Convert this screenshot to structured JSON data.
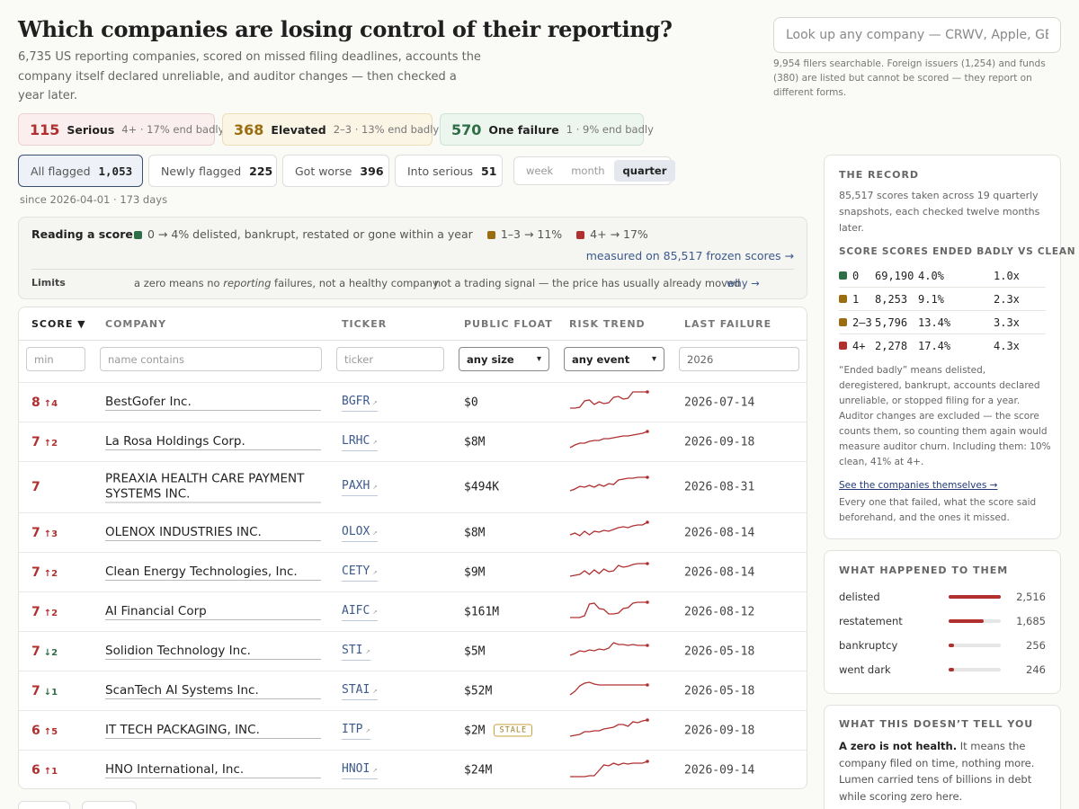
{
  "header": {
    "title": "Which companies are losing control of their reporting?",
    "subtitle": "6,735 US reporting companies, scored on missed filing deadlines, accounts the company itself declared unreliable, and auditor changes — then checked a year later.",
    "search_placeholder": "Look up any company — CRWV, Apple, GE…",
    "search_note": "9,954 filers searchable. Foreign issuers (1,254) and funds (380) are listed but cannot be scored — they report on different forms."
  },
  "summary": [
    {
      "num": "115",
      "label": "Serious",
      "sub": "4+ · 17% end badly",
      "color": "#b03030",
      "bg": "#fbeeee",
      "border": "#efd0d0"
    },
    {
      "num": "368",
      "label": "Elevated",
      "sub": "2–3 · 13% end badly",
      "color": "#9a6d10",
      "bg": "#fbf5e6",
      "border": "#ecdfb8"
    },
    {
      "num": "570",
      "label": "One failure",
      "sub": "1 · 9% end badly",
      "color": "#2e6e46",
      "bg": "#edf5ef",
      "border": "#cfe3d5"
    }
  ],
  "tabs": [
    {
      "label": "All flagged",
      "count": "1,053"
    },
    {
      "label": "Newly flagged",
      "count": "225"
    },
    {
      "label": "Got worse",
      "count": "396"
    },
    {
      "label": "Into serious",
      "count": "51"
    }
  ],
  "period": {
    "options": [
      "week",
      "month",
      "quarter"
    ],
    "selected": "quarter"
  },
  "since": "since 2026-04-01 · 173 days",
  "legend": {
    "title": "Reading a score",
    "items": [
      {
        "label": "0 → 4% delisted, bankrupt, restated or gone within a year",
        "color": "#2e6e46"
      },
      {
        "label": "1–3 → 11%",
        "color": "#9a6d10"
      },
      {
        "label": "4+ → 17%",
        "color": "#b03030"
      }
    ],
    "measured_link": "measured on 85,517 frozen scores →",
    "limits_label": "Limits",
    "limit_1_pre": "a zero means no ",
    "limit_1_em": "reporting",
    "limit_1_post": " failures, not a healthy company",
    "limit_2": "not a trading signal — the price has usually already moved",
    "why_link": "why →"
  },
  "table": {
    "columns": [
      "SCORE ▼",
      "COMPANY",
      "TICKER",
      "PUBLIC FLOAT",
      "RISK TREND",
      "LAST FAILURE"
    ],
    "filters": {
      "min": "min",
      "name": "name contains",
      "ticker": "ticker",
      "size": "any size",
      "event": "any event",
      "year": "2026"
    },
    "rows": [
      {
        "score": "8",
        "delta": "↑4",
        "dir": "up",
        "company": "BestGofer Inc.",
        "ticker": "BGFR",
        "float": "$0",
        "stale": "",
        "last": "2026-07-14",
        "trend": [
          0.1,
          0.1,
          0.15,
          0.5,
          0.55,
          0.3,
          0.45,
          0.35,
          0.4,
          0.7,
          0.75,
          0.6,
          0.65,
          1,
          1,
          1,
          1
        ]
      },
      {
        "score": "7",
        "delta": "↑2",
        "dir": "up",
        "company": "La Rosa Holdings Corp.",
        "ticker": "LRHC",
        "float": "$8M",
        "stale": "",
        "last": "2026-09-18",
        "trend": [
          0.1,
          0.25,
          0.35,
          0.35,
          0.45,
          0.5,
          0.5,
          0.6,
          0.6,
          0.65,
          0.7,
          0.75,
          0.75,
          0.8,
          0.85,
          0.9,
          1
        ]
      },
      {
        "score": "7",
        "delta": "",
        "dir": "",
        "company": "PREAXIA HEALTH CARE PAYMENT SYSTEMS INC.",
        "ticker": "PAXH",
        "float": "$494K",
        "stale": "",
        "last": "2026-08-31",
        "trend": [
          0.2,
          0.3,
          0.45,
          0.4,
          0.5,
          0.4,
          0.55,
          0.45,
          0.6,
          0.55,
          0.8,
          0.85,
          0.9,
          0.9,
          0.95,
          0.95,
          0.95
        ]
      },
      {
        "score": "7",
        "delta": "↑3",
        "dir": "up",
        "company": "OLENOX INDUSTRIES INC.",
        "ticker": "OLOX",
        "float": "$8M",
        "stale": "",
        "last": "2026-08-14",
        "trend": [
          0.3,
          0.4,
          0.25,
          0.5,
          0.3,
          0.5,
          0.45,
          0.55,
          0.5,
          0.6,
          0.7,
          0.75,
          0.7,
          0.8,
          0.85,
          0.85,
          1
        ]
      },
      {
        "score": "7",
        "delta": "↑2",
        "dir": "up",
        "company": "Clean Energy Technologies, Inc.",
        "ticker": "CETY",
        "float": "$9M",
        "stale": "",
        "last": "2026-08-14",
        "trend": [
          0.2,
          0.25,
          0.3,
          0.5,
          0.3,
          0.55,
          0.35,
          0.6,
          0.45,
          0.5,
          0.8,
          0.7,
          0.75,
          0.85,
          0.9,
          0.9,
          0.9
        ]
      },
      {
        "score": "7",
        "delta": "↑2",
        "dir": "up",
        "company": "AI Financial Corp",
        "ticker": "AIFC",
        "float": "$161M",
        "stale": "",
        "last": "2026-08-12",
        "trend": [
          0.1,
          0.1,
          0.1,
          0.2,
          0.85,
          0.9,
          0.6,
          0.55,
          0.3,
          0.3,
          0.35,
          0.6,
          0.65,
          0.9,
          0.95,
          0.95,
          0.95
        ]
      },
      {
        "score": "7",
        "delta": "↓2",
        "dir": "down",
        "company": "Solidion Technology Inc.",
        "ticker": "STI",
        "float": "$5M",
        "stale": "",
        "last": "2026-05-18",
        "trend": [
          0.2,
          0.3,
          0.45,
          0.4,
          0.5,
          0.45,
          0.55,
          0.5,
          0.6,
          0.9,
          0.8,
          0.8,
          0.75,
          0.8,
          0.75,
          0.75,
          0.75
        ]
      },
      {
        "score": "7",
        "delta": "↓1",
        "dir": "down",
        "company": "ScanTech AI Systems Inc.",
        "ticker": "STAI",
        "float": "$52M",
        "stale": "",
        "last": "2026-05-18",
        "trend": [
          0.2,
          0.4,
          0.7,
          0.85,
          0.9,
          0.8,
          0.75,
          0.75,
          0.75,
          0.75,
          0.75,
          0.75,
          0.75,
          0.75,
          0.75,
          0.75,
          0.75
        ]
      },
      {
        "score": "6",
        "delta": "↑5",
        "dir": "up",
        "company": "IT TECH PACKAGING, INC.",
        "ticker": "ITP",
        "float": "$2M",
        "stale": "STALE",
        "last": "2026-09-18",
        "trend": [
          0.1,
          0.15,
          0.2,
          0.35,
          0.35,
          0.4,
          0.4,
          0.5,
          0.55,
          0.6,
          0.75,
          0.75,
          0.65,
          0.9,
          0.85,
          0.95,
          1
        ]
      },
      {
        "score": "6",
        "delta": "↑1",
        "dir": "up",
        "company": "HNO International, Inc.",
        "ticker": "HNOI",
        "float": "$24M",
        "stale": "",
        "last": "2026-09-14",
        "trend": [
          0.05,
          0.05,
          0.05,
          0.05,
          0.1,
          0.1,
          0.4,
          0.7,
          0.65,
          0.8,
          0.7,
          0.8,
          0.75,
          0.8,
          0.8,
          0.8,
          0.9
        ]
      }
    ]
  },
  "record": {
    "title": "THE RECORD",
    "text": "85,517 scores taken across 19 quarterly snapshots, each checked twelve months later.",
    "table_title": "SCORE SCORES ENDED BADLY VS CLEAN",
    "rows": [
      {
        "score": "0",
        "count": "69,190",
        "pct": "4.0%",
        "mult": "1.0x",
        "color": "#2e6e46"
      },
      {
        "score": "1",
        "count": "8,253",
        "pct": "9.1%",
        "mult": "2.3x",
        "color": "#9a6d10"
      },
      {
        "score": "2–3",
        "count": "5,796",
        "pct": "13.4%",
        "mult": "3.3x",
        "color": "#9a6d10"
      },
      {
        "score": "4+",
        "count": "2,278",
        "pct": "17.4%",
        "mult": "4.3x",
        "color": "#b03030"
      }
    ],
    "note": "“Ended badly” means delisted, deregistered, bankrupt, accounts declared unreliable, or stopped filing for a year. Auditor changes are excluded — the score counts them, so counting them again would measure auditor churn. Including them: 10% clean, 41% at 4+.",
    "link": "See the companies themselves →",
    "link_note": "Every one that failed, what the score said beforehand, and the ones it missed."
  },
  "happened": {
    "title": "WHAT HAPPENED TO THEM",
    "max": 2516,
    "rows": [
      {
        "label": "delisted",
        "value": 2516,
        "display": "2,516"
      },
      {
        "label": "restatement",
        "value": 1685,
        "display": "1,685"
      },
      {
        "label": "bankruptcy",
        "value": 256,
        "display": "256"
      },
      {
        "label": "went dark",
        "value": 246,
        "display": "246"
      }
    ]
  },
  "doesnt": {
    "title": "WHAT THIS DOESN’T TELL YOU",
    "bold": "A zero is not health.",
    "text": " It means the company filed on time, nothing more. Lumen carried tens of billions in debt while scoring zero here."
  }
}
